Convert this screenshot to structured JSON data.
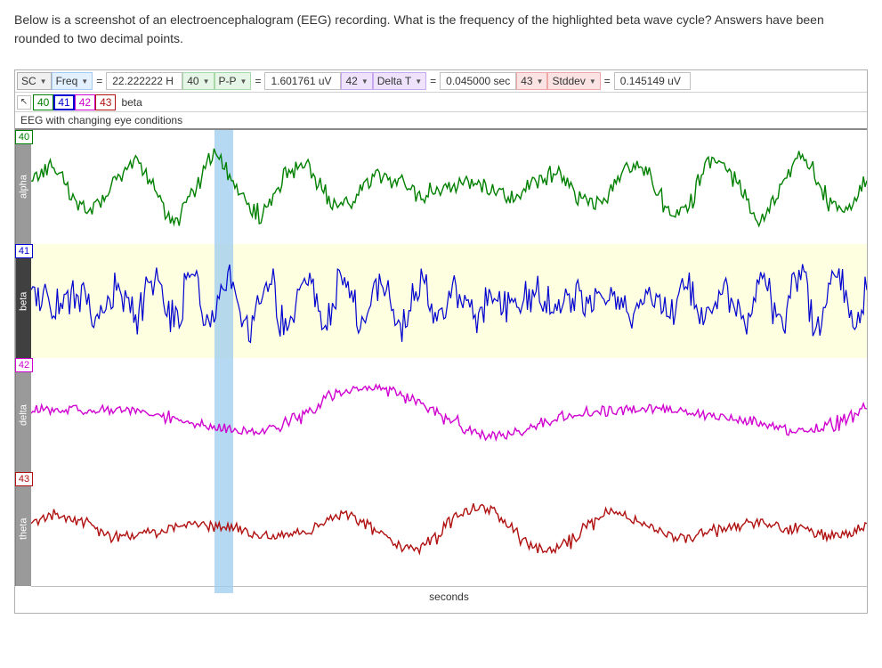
{
  "question_text": "Below is a screenshot of an electroencephalogram (EEG) recording. What is the frequency of the highlighted beta wave cycle? Answers have been rounded to two decimal points.",
  "toolbar": {
    "sc_label": "SC",
    "m1": {
      "label": "Freq",
      "value": "22.222222 H",
      "bg": "#e3f0ff",
      "border": "#a4c8ee"
    },
    "ch1": "40",
    "m2": {
      "label": "P-P",
      "value": "1.601761 uV",
      "bg": "#e6f6e6",
      "border": "#a8d8a8"
    },
    "ch2": "42",
    "m3": {
      "label": "Delta T",
      "value": "0.045000 sec",
      "bg": "#eee3fb",
      "border": "#c8a8ee"
    },
    "ch3": "43",
    "m4": {
      "label": "Stddev",
      "value": "0.145149 uV",
      "bg": "#fbe3e3",
      "border": "#eea8a8"
    }
  },
  "tabs": {
    "cursor_glyph": "↖",
    "items": [
      {
        "label": "40",
        "color": "#008000"
      },
      {
        "label": "41",
        "color": "#0000d0"
      },
      {
        "label": "42",
        "color": "#d000d0"
      },
      {
        "label": "43",
        "color": "#b01010"
      }
    ],
    "wave_label": "beta"
  },
  "subtitle": "EEG with changing eye conditions",
  "highlight": {
    "left_pct": 22.0,
    "width_pct": 2.3
  },
  "channels": [
    {
      "num": "40",
      "num_color": "#008000",
      "name": "alpha",
      "stroke": "#008000",
      "selected": false,
      "freq": 10,
      "amp": 0.6,
      "noise": 0.25,
      "jitter": 0.1
    },
    {
      "num": "41",
      "num_color": "#0000d0",
      "name": "beta",
      "stroke": "#0000d0",
      "selected": true,
      "freq": 22,
      "amp": 0.55,
      "noise": 0.55,
      "jitter": 0.25
    },
    {
      "num": "42",
      "num_color": "#d000d0",
      "name": "delta",
      "stroke": "#d000d0",
      "selected": false,
      "freq": 3,
      "amp": 0.55,
      "noise": 0.15,
      "jitter": 0.05
    },
    {
      "num": "43",
      "num_color": "#b01010",
      "name": "theta",
      "stroke": "#b01010",
      "selected": false,
      "freq": 6,
      "amp": 0.45,
      "noise": 0.2,
      "jitter": 0.08
    }
  ],
  "xaxis_label": "seconds",
  "wave_area_width": 936,
  "track_height": 128
}
